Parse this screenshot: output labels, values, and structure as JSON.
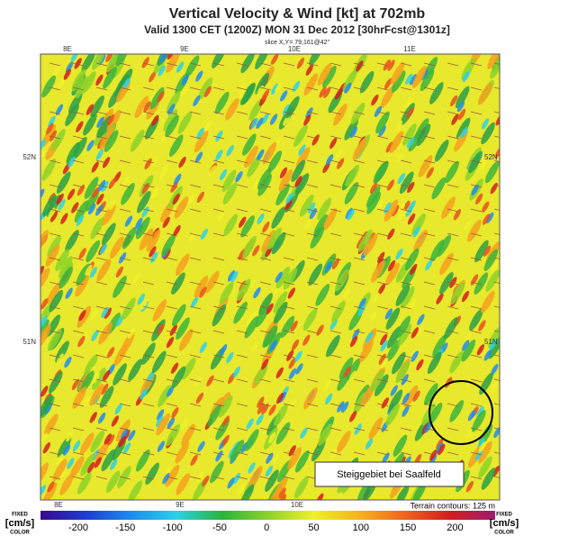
{
  "header": {
    "title": "Vertical Velocity & Wind [kt] at 702mb",
    "subtitle": "Valid 1300 CET (1200Z) MON 31 Dec 2012 [30hrFcst@1301z]",
    "slice": "slice X,Y= 79,161@42\""
  },
  "axes": {
    "top": [
      "8E",
      "9E",
      "10E",
      "11E"
    ],
    "bottom": [
      "8E",
      "9E",
      "10E"
    ],
    "left": [
      "52N",
      "51N"
    ],
    "right": [
      "52N",
      "51N"
    ]
  },
  "colorbar": {
    "ticks": [
      -200,
      -150,
      -100,
      -50,
      0,
      50,
      100,
      150,
      200
    ],
    "left_label": [
      "FIXED",
      "[cm/s]",
      "COLOR"
    ],
    "right_label": [
      "FIXED",
      "[cm/s]",
      "COLOR"
    ]
  },
  "terrain_note": "Terrain contours: 125 m",
  "annotation": "Steiggebiet bei Saalfeld"
}
